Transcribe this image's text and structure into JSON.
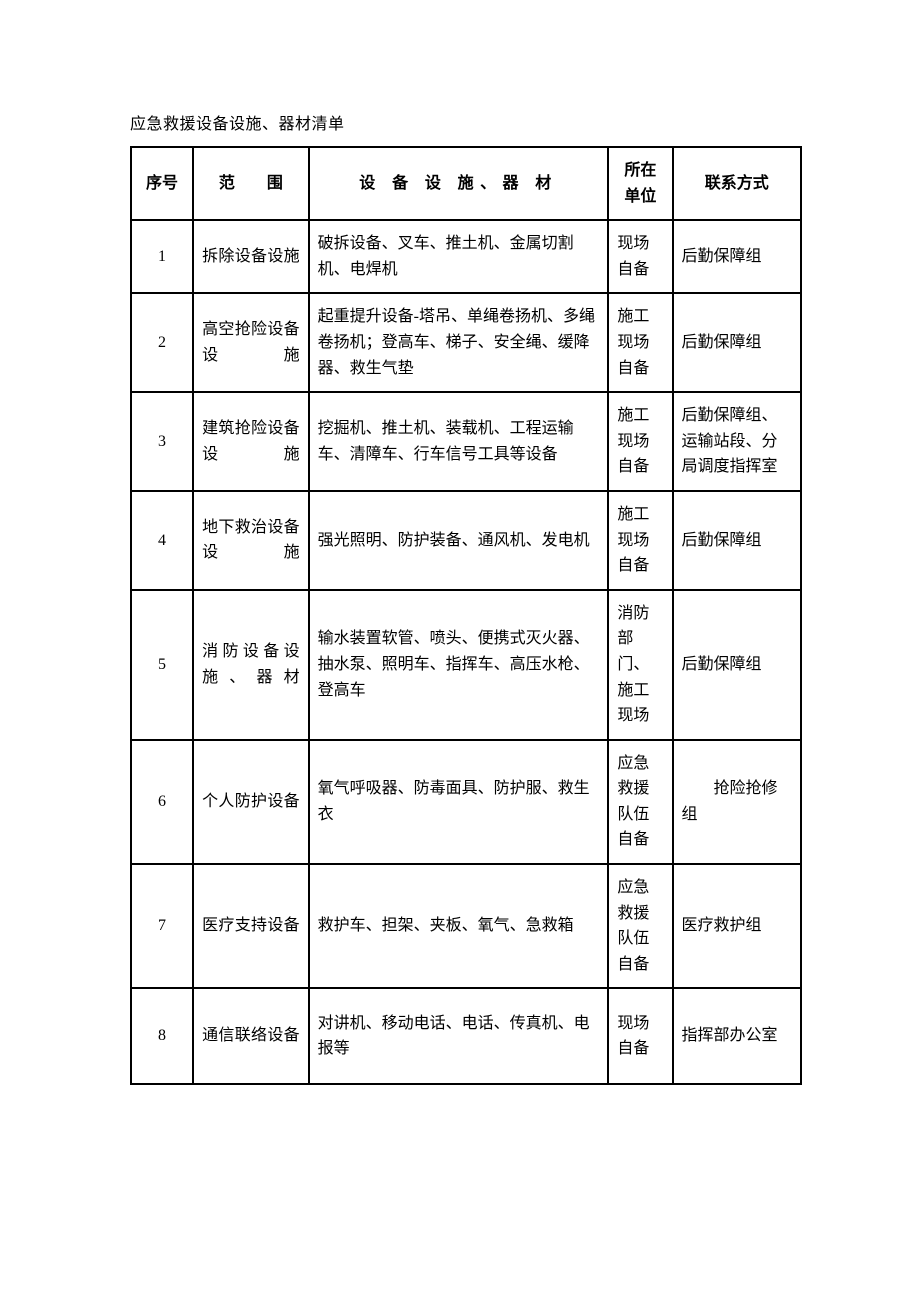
{
  "title": "应急救援设备设施、器材清单",
  "columns": {
    "seq": "序号",
    "scope_a": "范",
    "scope_b": "围",
    "equip": "设 备 设 施、器 材",
    "unit": "所在单位",
    "contact": "联系方式"
  },
  "rows": [
    {
      "seq": "1",
      "scope": "拆除设备设施",
      "equip": "破拆设备、叉车、推土机、金属切割机、电焊机",
      "unit": "现场自备",
      "contact": "后勤保障组"
    },
    {
      "seq": "2",
      "scope": "高空抢险设备设施",
      "equip": "起重提升设备-塔吊、单绳卷扬机、多绳卷扬机；登高车、梯子、安全绳、缓降器、救生气垫",
      "unit": "施工现场自备",
      "contact": "后勤保障组"
    },
    {
      "seq": "3",
      "scope": "建筑抢险设备设施",
      "equip": "挖掘机、推土机、装载机、工程运输车、清障车、行车信号工具等设备",
      "unit": "施工现场自备",
      "contact": "后勤保障组、运输站段、分局调度指挥室"
    },
    {
      "seq": "4",
      "scope": "地下救治设备设施",
      "equip": "强光照明、防护装备、通风机、发电机",
      "unit": "施工现场自备",
      "contact": "后勤保障组"
    },
    {
      "seq": "5",
      "scope": "消防设备设施、器材",
      "equip": "输水装置软管、喷头、便携式灭火器、抽水泵、照明车、指挥车、高压水枪、登高车",
      "unit": "消防部门、施工现场",
      "contact": "后勤保障组"
    },
    {
      "seq": "6",
      "scope": "个人防护设备",
      "equip": "氧气呼吸器、防毒面具、防护服、救生衣",
      "unit": "应急救援队伍自备",
      "contact": "　　抢险抢修组"
    },
    {
      "seq": "7",
      "scope": "医疗支持设备",
      "equip": "救护车、担架、夹板、氧气、急救箱",
      "unit": "应急救援队伍自备",
      "contact": "医疗救护组"
    },
    {
      "seq": "8",
      "scope": "通信联络设备",
      "equip": "对讲机、移动电话、电话、传真机、电报等",
      "unit": "现场自备",
      "contact": "指挥部办公室"
    }
  ]
}
